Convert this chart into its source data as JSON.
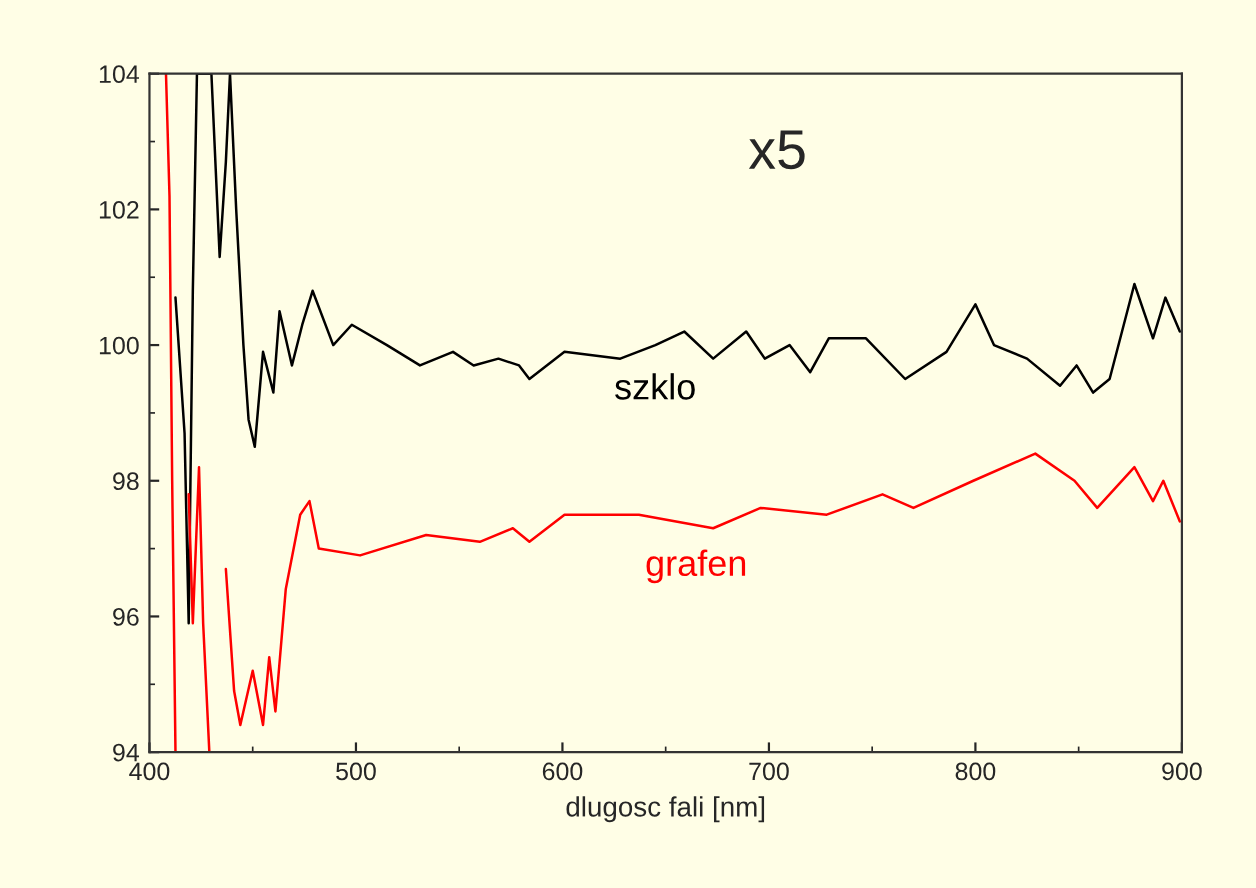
{
  "chart_data": {
    "type": "line",
    "xlabel": "dlugosc fali [nm]",
    "xlim": [
      400,
      900
    ],
    "xticks": [
      400,
      500,
      600,
      700,
      800,
      900
    ],
    "ylim": [
      94,
      104
    ],
    "yticks": [
      94,
      96,
      98,
      100,
      102,
      104
    ],
    "grid": false,
    "legend": false,
    "marker": "none",
    "line_style": "solid",
    "annotations": [
      "x5"
    ],
    "series": [
      {
        "name": "szklo",
        "color": "#000000",
        "x": [
          412.6,
          417,
          419,
          421,
          423,
          430,
          434,
          437,
          439,
          442,
          445.5,
          448,
          451,
          455,
          460,
          463,
          469,
          474,
          479,
          489,
          498,
          515,
          531,
          547,
          557,
          569,
          579,
          584,
          601,
          628,
          645,
          659,
          673,
          689,
          698,
          710,
          720,
          729,
          747,
          766,
          786,
          800,
          809,
          825,
          841,
          849,
          857,
          865,
          877,
          886,
          892,
          899
        ],
        "values": [
          100.7,
          98.7,
          95.9,
          100.8,
          104,
          104,
          101.3,
          102.7,
          104,
          102,
          100,
          98.9,
          98.5,
          99.9,
          99.3,
          100.5,
          99.7,
          100.3,
          100.8,
          100,
          100.3,
          100,
          99.7,
          99.9,
          99.7,
          99.8,
          99.7,
          99.5,
          99.9,
          99.8,
          100,
          100.2,
          99.8,
          100.2,
          99.8,
          100,
          99.6,
          100.1,
          100.1,
          99.5,
          99.9,
          100.6,
          100,
          99.8,
          99.4,
          99.7,
          99.3,
          99.5,
          100.9,
          100.1,
          100.7,
          100.2
        ]
      },
      {
        "name": "grafen",
        "color": "#ff0000",
        "x": [
          408,
          409.7,
          411,
          412.6,
          415,
          419,
          421,
          424,
          426,
          429,
          433,
          437,
          441,
          444,
          450,
          455,
          458,
          461,
          466,
          473,
          477.5,
          482,
          502,
          534,
          560,
          576,
          584,
          601,
          637,
          673,
          696,
          728,
          755,
          770,
          799,
          829,
          848,
          859,
          877,
          886,
          891,
          899
        ],
        "values": [
          104,
          102.2,
          98,
          94,
          null,
          97.8,
          95.9,
          98.2,
          95.9,
          94,
          null,
          96.7,
          94.9,
          94.4,
          95.2,
          94.4,
          95.4,
          94.6,
          96.4,
          97.5,
          97.7,
          97.0,
          96.9,
          97.2,
          97.1,
          97.3,
          97.1,
          97.5,
          97.5,
          97.3,
          97.6,
          97.5,
          97.8,
          97.6,
          98.0,
          98.4,
          98.0,
          97.6,
          98.2,
          97.7,
          98.0,
          97.4
        ]
      }
    ]
  }
}
